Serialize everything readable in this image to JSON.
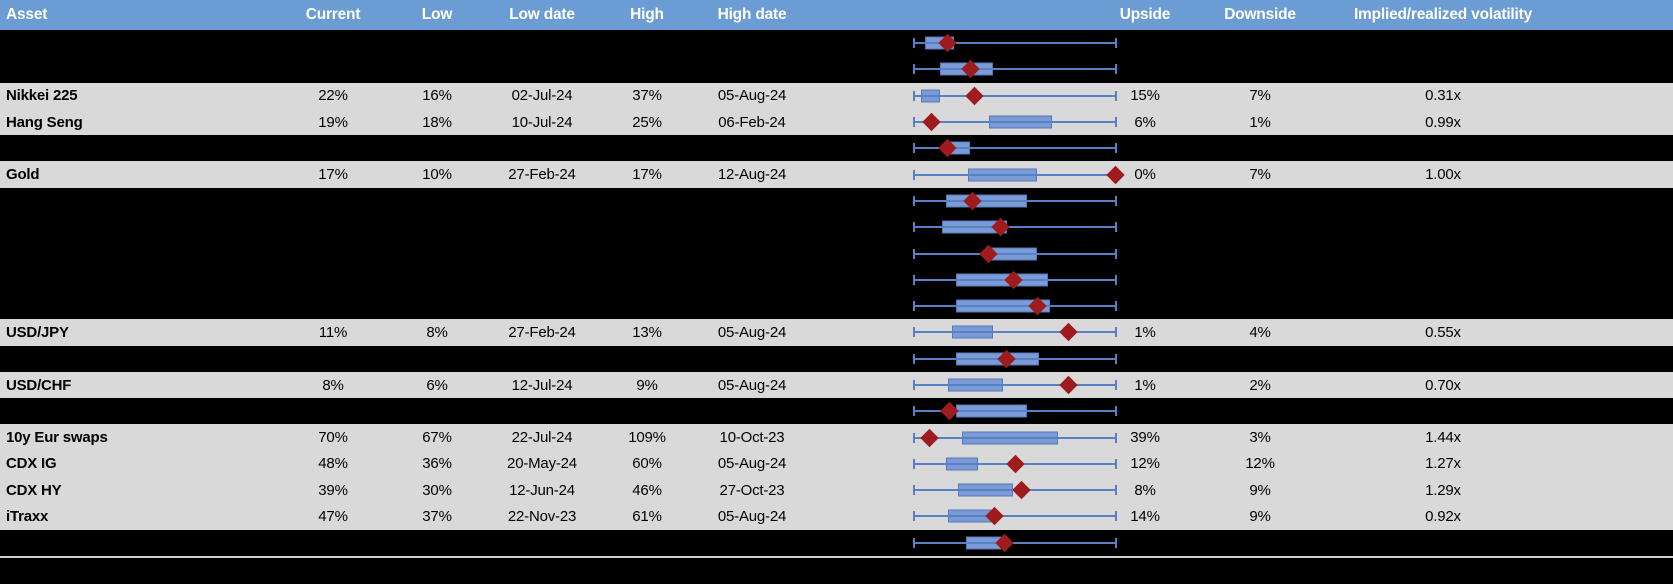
{
  "title": "Implied volatility range table",
  "colors": {
    "header_bg": "#6C9CD4",
    "header_text": "#FFFFFF",
    "row_gray": "#D9D9D9",
    "row_black": "#000000",
    "box_fill": "#7B9BD6",
    "box_border": "#5578BC",
    "whisker": "#5880C4",
    "diamond_marker": "#A01B1E",
    "separator": "#CFCFCF",
    "body_text": "#000000"
  },
  "header": {
    "columns": [
      "Asset",
      "Current",
      "Low",
      "Low date",
      "High",
      "High date",
      "Upside",
      "Downside",
      "Implied/realized volatility"
    ]
  },
  "icons": {
    "current_marker": "red-diamond-icon",
    "range_bar": "blue-box-whisker"
  },
  "rows": [
    {
      "type": "hidden",
      "plot": {
        "box_lo": 0.06,
        "box_hi": 0.2,
        "cur": 0.17
      }
    },
    {
      "type": "hidden",
      "plot": {
        "box_lo": 0.13,
        "box_hi": 0.39,
        "cur": 0.28
      }
    },
    {
      "type": "data",
      "asset": "Nikkei 225",
      "current": "22%",
      "low": "16%",
      "low_date": "02-Jul-24",
      "high": "37%",
      "high_date": "05-Aug-24",
      "upside": "15%",
      "downside": "7%",
      "ivrv": "0.31x",
      "plot": {
        "box_lo": 0.04,
        "box_hi": 0.13,
        "cur": 0.3
      }
    },
    {
      "type": "data",
      "asset": "Hang Seng",
      "current": "19%",
      "low": "18%",
      "low_date": "10-Jul-24",
      "high": "25%",
      "high_date": "06-Feb-24",
      "upside": "6%",
      "downside": "1%",
      "ivrv": "0.99x",
      "plot": {
        "box_lo": 0.37,
        "box_hi": 0.68,
        "cur": 0.09
      }
    },
    {
      "type": "hidden",
      "plot": {
        "box_lo": 0.18,
        "box_hi": 0.28,
        "cur": 0.17
      }
    },
    {
      "type": "data",
      "asset": "Gold",
      "current": "17%",
      "low": "10%",
      "low_date": "27-Feb-24",
      "high": "17%",
      "high_date": "12-Aug-24",
      "upside": "0%",
      "downside": "7%",
      "ivrv": "1.00x",
      "plot": {
        "box_lo": 0.27,
        "box_hi": 0.61,
        "cur": 0.99
      }
    },
    {
      "type": "hidden",
      "plot": {
        "box_lo": 0.16,
        "box_hi": 0.56,
        "cur": 0.29
      }
    },
    {
      "type": "hidden",
      "plot": {
        "box_lo": 0.14,
        "box_hi": 0.46,
        "cur": 0.43
      }
    },
    {
      "type": "hidden",
      "plot": {
        "box_lo": 0.38,
        "box_hi": 0.61,
        "cur": 0.37
      }
    },
    {
      "type": "hidden",
      "plot": {
        "box_lo": 0.21,
        "box_hi": 0.66,
        "cur": 0.49
      }
    },
    {
      "type": "hidden",
      "plot": {
        "box_lo": 0.21,
        "box_hi": 0.67,
        "cur": 0.61
      }
    },
    {
      "type": "data",
      "asset": "USD/JPY",
      "current": "11%",
      "low": "8%",
      "low_date": "27-Feb-24",
      "high": "13%",
      "high_date": "05-Aug-24",
      "upside": "1%",
      "downside": "4%",
      "ivrv": "0.55x",
      "plot": {
        "box_lo": 0.19,
        "box_hi": 0.39,
        "cur": 0.76
      }
    },
    {
      "type": "hidden",
      "plot": {
        "box_lo": 0.21,
        "box_hi": 0.62,
        "cur": 0.46
      }
    },
    {
      "type": "data",
      "asset": "USD/CHF",
      "current": "8%",
      "low": "6%",
      "low_date": "12-Jul-24",
      "high": "9%",
      "high_date": "05-Aug-24",
      "upside": "1%",
      "downside": "2%",
      "ivrv": "0.70x",
      "plot": {
        "box_lo": 0.17,
        "box_hi": 0.44,
        "cur": 0.76
      }
    },
    {
      "type": "hidden",
      "plot": {
        "box_lo": 0.21,
        "box_hi": 0.56,
        "cur": 0.18
      }
    },
    {
      "type": "data",
      "asset": "10y Eur swaps",
      "current": "70%",
      "low": "67%",
      "low_date": "22-Jul-24",
      "high": "109%",
      "high_date": "10-Oct-23",
      "upside": "39%",
      "downside": "3%",
      "ivrv": "1.44x",
      "plot": {
        "box_lo": 0.24,
        "box_hi": 0.71,
        "cur": 0.08
      }
    },
    {
      "type": "data",
      "asset": "CDX IG",
      "current": "48%",
      "low": "36%",
      "low_date": "20-May-24",
      "high": "60%",
      "high_date": "05-Aug-24",
      "upside": "12%",
      "downside": "12%",
      "ivrv": "1.27x",
      "plot": {
        "box_lo": 0.16,
        "box_hi": 0.32,
        "cur": 0.5
      }
    },
    {
      "type": "data",
      "asset": "CDX HY",
      "current": "39%",
      "low": "30%",
      "low_date": "12-Jun-24",
      "high": "46%",
      "high_date": "27-Oct-23",
      "upside": "8%",
      "downside": "9%",
      "ivrv": "1.29x",
      "plot": {
        "box_lo": 0.22,
        "box_hi": 0.49,
        "cur": 0.53
      }
    },
    {
      "type": "data",
      "asset": "iTraxx",
      "current": "47%",
      "low": "37%",
      "low_date": "22-Nov-23",
      "high": "61%",
      "high_date": "05-Aug-24",
      "upside": "14%",
      "downside": "9%",
      "ivrv": "0.92x",
      "plot": {
        "box_lo": 0.17,
        "box_hi": 0.39,
        "cur": 0.4
      }
    },
    {
      "type": "hidden",
      "plot": {
        "box_lo": 0.26,
        "box_hi": 0.43,
        "cur": 0.45
      }
    }
  ],
  "chart_data": {
    "type": "table",
    "title": "Implied volatility: current vs low/high range with upside/downside and implied/realized ratio",
    "columns": [
      "Asset",
      "Current",
      "Low",
      "Low date",
      "High",
      "High date",
      "Upside",
      "Downside",
      "Implied/realized volatility"
    ],
    "rows": [
      [
        "Nikkei 225",
        "22%",
        "16%",
        "02-Jul-24",
        "37%",
        "05-Aug-24",
        "15%",
        "7%",
        "0.31x"
      ],
      [
        "Hang Seng",
        "19%",
        "18%",
        "10-Jul-24",
        "25%",
        "06-Feb-24",
        "6%",
        "1%",
        "0.99x"
      ],
      [
        "Gold",
        "17%",
        "10%",
        "27-Feb-24",
        "17%",
        "12-Aug-24",
        "0%",
        "7%",
        "1.00x"
      ],
      [
        "USD/JPY",
        "11%",
        "8%",
        "27-Feb-24",
        "13%",
        "05-Aug-24",
        "1%",
        "4%",
        "0.55x"
      ],
      [
        "USD/CHF",
        "8%",
        "6%",
        "12-Jul-24",
        "9%",
        "05-Aug-24",
        "1%",
        "2%",
        "0.70x"
      ],
      [
        "10y Eur swaps",
        "70%",
        "67%",
        "22-Jul-24",
        "109%",
        "10-Oct-23",
        "39%",
        "3%",
        "1.44x"
      ],
      [
        "CDX IG",
        "48%",
        "36%",
        "20-May-24",
        "60%",
        "05-Aug-24",
        "12%",
        "12%",
        "1.27x"
      ],
      [
        "CDX HY",
        "39%",
        "30%",
        "12-Jun-24",
        "46%",
        "27-Oct-23",
        "8%",
        "9%",
        "1.29x"
      ],
      [
        "iTraxx",
        "47%",
        "37%",
        "22-Nov-23",
        "61%",
        "05-Aug-24",
        "14%",
        "9%",
        "0.92x"
      ]
    ],
    "embedded_row_chart": {
      "type": "box-whisker",
      "orientation": "horizontal",
      "whiskers": "full low-high range, normalized 0 to 1, drawn for every row",
      "box": "inner blue range bar (box_lo to box_hi, normalized)",
      "marker": "dark-red diamond = current level (cur, normalized)",
      "per_row_values": "see rows[].plot in this document's page data"
    },
    "legend_position": "none",
    "grid": false
  }
}
